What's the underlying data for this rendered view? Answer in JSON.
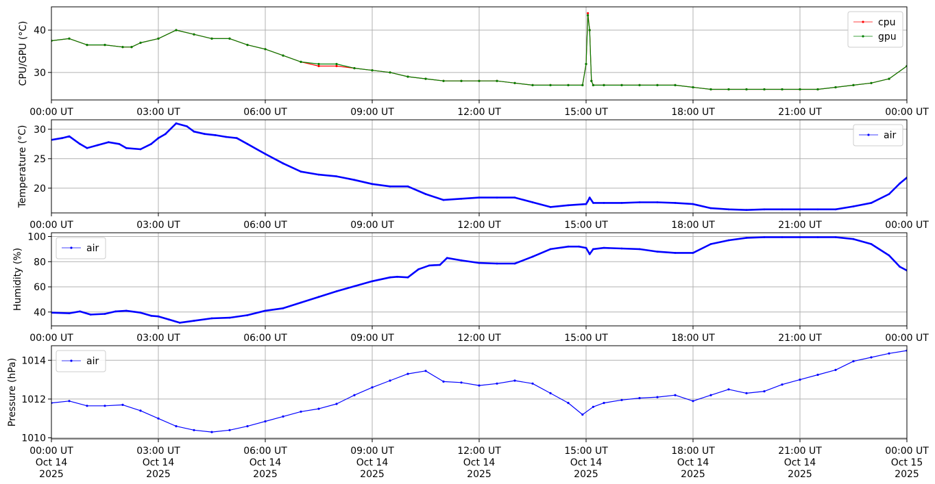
{
  "colors": {
    "cpu": "#ff0000",
    "gpu": "#008000",
    "air": "#0000ff",
    "grid": "#b0b0b0"
  },
  "x_ticks": [
    "00:00 UT",
    "03:00 UT",
    "06:00 UT",
    "09:00 UT",
    "12:00 UT",
    "15:00 UT",
    "18:00 UT",
    "21:00 UT",
    "00:00 UT"
  ],
  "x_ticks_bottom": [
    [
      "00:00 UT",
      "Oct 14",
      "2025"
    ],
    [
      "03:00 UT",
      "Oct 14",
      "2025"
    ],
    [
      "06:00 UT",
      "Oct 14",
      "2025"
    ],
    [
      "09:00 UT",
      "Oct 14",
      "2025"
    ],
    [
      "12:00 UT",
      "Oct 14",
      "2025"
    ],
    [
      "15:00 UT",
      "Oct 14",
      "2025"
    ],
    [
      "18:00 UT",
      "Oct 14",
      "2025"
    ],
    [
      "21:00 UT",
      "Oct 14",
      "2025"
    ],
    [
      "00:00 UT",
      "Oct 15",
      "2025"
    ]
  ],
  "chart_data": [
    {
      "type": "scatter",
      "ylabel": "CPU/GPU (°C)",
      "xlabel": "",
      "xlim": [
        0,
        24
      ],
      "ylim": [
        23.5,
        45.5
      ],
      "yticks": [
        30,
        40
      ],
      "grid": true,
      "legend_position": "top-right",
      "series": [
        {
          "name": "cpu",
          "color_key": "cpu",
          "x": [
            0,
            0.5,
            1,
            1.5,
            2,
            2.25,
            2.5,
            3,
            3.5,
            4,
            4.5,
            5,
            5.5,
            6,
            6.5,
            7,
            7.5,
            8,
            8.5,
            9,
            9.5,
            10,
            10.5,
            11,
            11.5,
            12,
            12.5,
            13,
            13.5,
            14,
            14.5,
            14.9,
            15.0,
            15.05,
            15.1,
            15.15,
            15.2,
            15.5,
            16,
            16.5,
            17,
            17.5,
            18,
            18.5,
            19,
            19.5,
            20,
            20.5,
            21,
            21.5,
            22,
            22.5,
            23,
            23.5,
            24
          ],
          "y": [
            37.5,
            38,
            36.5,
            36.5,
            36,
            36,
            37,
            38,
            40,
            39,
            38,
            38,
            36.5,
            35.5,
            34,
            32.5,
            31.5,
            31.5,
            31,
            30.5,
            30,
            29,
            28.5,
            28,
            28,
            28,
            28,
            27.5,
            27,
            27,
            27,
            27,
            32,
            44,
            40,
            28,
            27,
            27,
            27,
            27,
            27,
            27,
            26.5,
            26,
            26,
            26,
            26,
            26,
            26,
            26,
            26.5,
            27,
            27.5,
            28.5,
            31.5
          ]
        },
        {
          "name": "gpu",
          "color_key": "gpu",
          "x": [
            0,
            0.5,
            1,
            1.5,
            2,
            2.25,
            2.5,
            3,
            3.5,
            4,
            4.5,
            5,
            5.5,
            6,
            6.5,
            7,
            7.5,
            8,
            8.5,
            9,
            9.5,
            10,
            10.5,
            11,
            11.5,
            12,
            12.5,
            13,
            13.5,
            14,
            14.5,
            14.9,
            15.0,
            15.05,
            15.1,
            15.15,
            15.2,
            15.5,
            16,
            16.5,
            17,
            17.5,
            18,
            18.5,
            19,
            19.5,
            20,
            20.5,
            21,
            21.5,
            22,
            22.5,
            23,
            23.5,
            24
          ],
          "y": [
            37.5,
            38,
            36.5,
            36.5,
            36,
            36,
            37,
            38,
            40,
            39,
            38,
            38,
            36.5,
            35.5,
            34,
            32.5,
            32,
            32,
            31,
            30.5,
            30,
            29,
            28.5,
            28,
            28,
            28,
            28,
            27.5,
            27,
            27,
            27,
            27,
            32,
            43.5,
            40,
            28,
            27,
            27,
            27,
            27,
            27,
            27,
            26.5,
            26,
            26,
            26,
            26,
            26,
            26,
            26,
            26.5,
            27,
            27.5,
            28.5,
            31.5
          ]
        }
      ]
    },
    {
      "type": "line",
      "ylabel": "Temperature (°C)",
      "xlabel": "",
      "xlim": [
        0,
        24
      ],
      "ylim": [
        15.8,
        31.6
      ],
      "yticks": [
        20,
        25,
        30
      ],
      "grid": true,
      "legend_position": "top-right",
      "series": [
        {
          "name": "air",
          "color_key": "air",
          "x": [
            0,
            0.3,
            0.5,
            0.8,
            1.0,
            1.3,
            1.6,
            1.9,
            2.1,
            2.5,
            2.8,
            3.0,
            3.2,
            3.5,
            3.8,
            4.0,
            4.3,
            4.6,
            4.9,
            5.2,
            5.5,
            6.0,
            6.5,
            7.0,
            7.5,
            8.0,
            8.5,
            9.0,
            9.5,
            10.0,
            10.5,
            11.0,
            11.5,
            12.0,
            12.5,
            13.0,
            13.5,
            14.0,
            14.5,
            15.0,
            15.05,
            15.1,
            15.2,
            15.5,
            16.0,
            16.5,
            17.0,
            17.5,
            18.0,
            18.5,
            19.0,
            19.5,
            20.0,
            20.5,
            21.0,
            21.5,
            22.0,
            22.5,
            23.0,
            23.5,
            23.8,
            24.0
          ],
          "y": [
            28.2,
            28.5,
            28.8,
            27.5,
            26.8,
            27.3,
            27.8,
            27.5,
            26.8,
            26.6,
            27.5,
            28.5,
            29.2,
            31.0,
            30.5,
            29.6,
            29.2,
            29.0,
            28.7,
            28.5,
            27.5,
            25.8,
            24.2,
            22.8,
            22.3,
            22.0,
            21.4,
            20.7,
            20.3,
            20.3,
            19.0,
            18.0,
            18.2,
            18.4,
            18.4,
            18.4,
            17.6,
            16.8,
            17.1,
            17.3,
            17.8,
            18.4,
            17.5,
            17.5,
            17.5,
            17.6,
            17.6,
            17.5,
            17.3,
            16.6,
            16.4,
            16.3,
            16.4,
            16.4,
            16.4,
            16.4,
            16.4,
            16.9,
            17.5,
            19.0,
            20.8,
            21.8
          ]
        }
      ]
    },
    {
      "type": "line",
      "ylabel": "Humidity (%)",
      "xlabel": "",
      "xlim": [
        0,
        24
      ],
      "ylim": [
        29,
        103
      ],
      "yticks": [
        40,
        60,
        80,
        100
      ],
      "grid": true,
      "legend_position": "top-left",
      "series": [
        {
          "name": "air",
          "color_key": "air",
          "x": [
            0,
            0.5,
            0.8,
            1.1,
            1.5,
            1.8,
            2.1,
            2.5,
            2.8,
            3.0,
            3.3,
            3.6,
            4.0,
            4.5,
            5.0,
            5.5,
            6.0,
            6.5,
            7.0,
            7.5,
            8.0,
            8.5,
            9.0,
            9.5,
            9.7,
            10.0,
            10.3,
            10.6,
            10.9,
            11.1,
            11.5,
            12.0,
            12.5,
            13.0,
            13.5,
            14.0,
            14.5,
            14.8,
            15.0,
            15.1,
            15.2,
            15.5,
            16.0,
            16.5,
            17.0,
            17.5,
            18.0,
            18.5,
            19.0,
            19.5,
            20.0,
            20.5,
            21.0,
            21.5,
            22.0,
            22.5,
            23.0,
            23.5,
            23.8,
            24.0
          ],
          "y": [
            39.5,
            39,
            40.5,
            38,
            38.5,
            40.5,
            41,
            39.5,
            37,
            36.5,
            34,
            31.5,
            33,
            35,
            35.5,
            37.5,
            41,
            43,
            47.5,
            52,
            56.5,
            60.5,
            64.5,
            67.5,
            68,
            67.5,
            74,
            77,
            77.5,
            83,
            81,
            79,
            78.5,
            78.5,
            84,
            90,
            92,
            92,
            91,
            86,
            90,
            91,
            90.5,
            90,
            88,
            87,
            87,
            94,
            97,
            99,
            99.5,
            99.5,
            99.5,
            99.5,
            99.5,
            98,
            94,
            85,
            76,
            73
          ]
        }
      ]
    },
    {
      "type": "scatter",
      "ylabel": "Pressure (hPa)",
      "xlabel": "",
      "xlim": [
        0,
        24
      ],
      "ylim": [
        1009.95,
        1014.75
      ],
      "yticks": [
        1010,
        1012,
        1014
      ],
      "grid": true,
      "legend_position": "top-left",
      "series": [
        {
          "name": "air",
          "color_key": "air",
          "x": [
            0,
            0.5,
            1.0,
            1.5,
            2.0,
            2.5,
            3.0,
            3.5,
            4.0,
            4.5,
            5.0,
            5.5,
            6.0,
            6.5,
            7.0,
            7.5,
            8.0,
            8.5,
            9.0,
            9.5,
            10.0,
            10.5,
            11.0,
            11.5,
            12.0,
            12.5,
            13.0,
            13.5,
            14.0,
            14.5,
            14.9,
            15.2,
            15.5,
            16.0,
            16.5,
            17.0,
            17.5,
            18.0,
            18.5,
            19.0,
            19.5,
            20.0,
            20.5,
            21.0,
            21.5,
            22.0,
            22.5,
            23.0,
            23.5,
            24.0
          ],
          "y": [
            1011.8,
            1011.9,
            1011.65,
            1011.65,
            1011.7,
            1011.4,
            1011.0,
            1010.6,
            1010.4,
            1010.3,
            1010.4,
            1010.6,
            1010.85,
            1011.1,
            1011.35,
            1011.5,
            1011.75,
            1012.2,
            1012.6,
            1012.95,
            1013.3,
            1013.45,
            1012.9,
            1012.85,
            1012.7,
            1012.8,
            1012.95,
            1012.8,
            1012.3,
            1011.8,
            1011.2,
            1011.6,
            1011.8,
            1011.95,
            1012.05,
            1012.1,
            1012.2,
            1011.9,
            1012.2,
            1012.5,
            1012.3,
            1012.4,
            1012.75,
            1013.0,
            1013.25,
            1013.5,
            1013.95,
            1014.15,
            1014.35,
            1014.5
          ]
        }
      ]
    }
  ]
}
